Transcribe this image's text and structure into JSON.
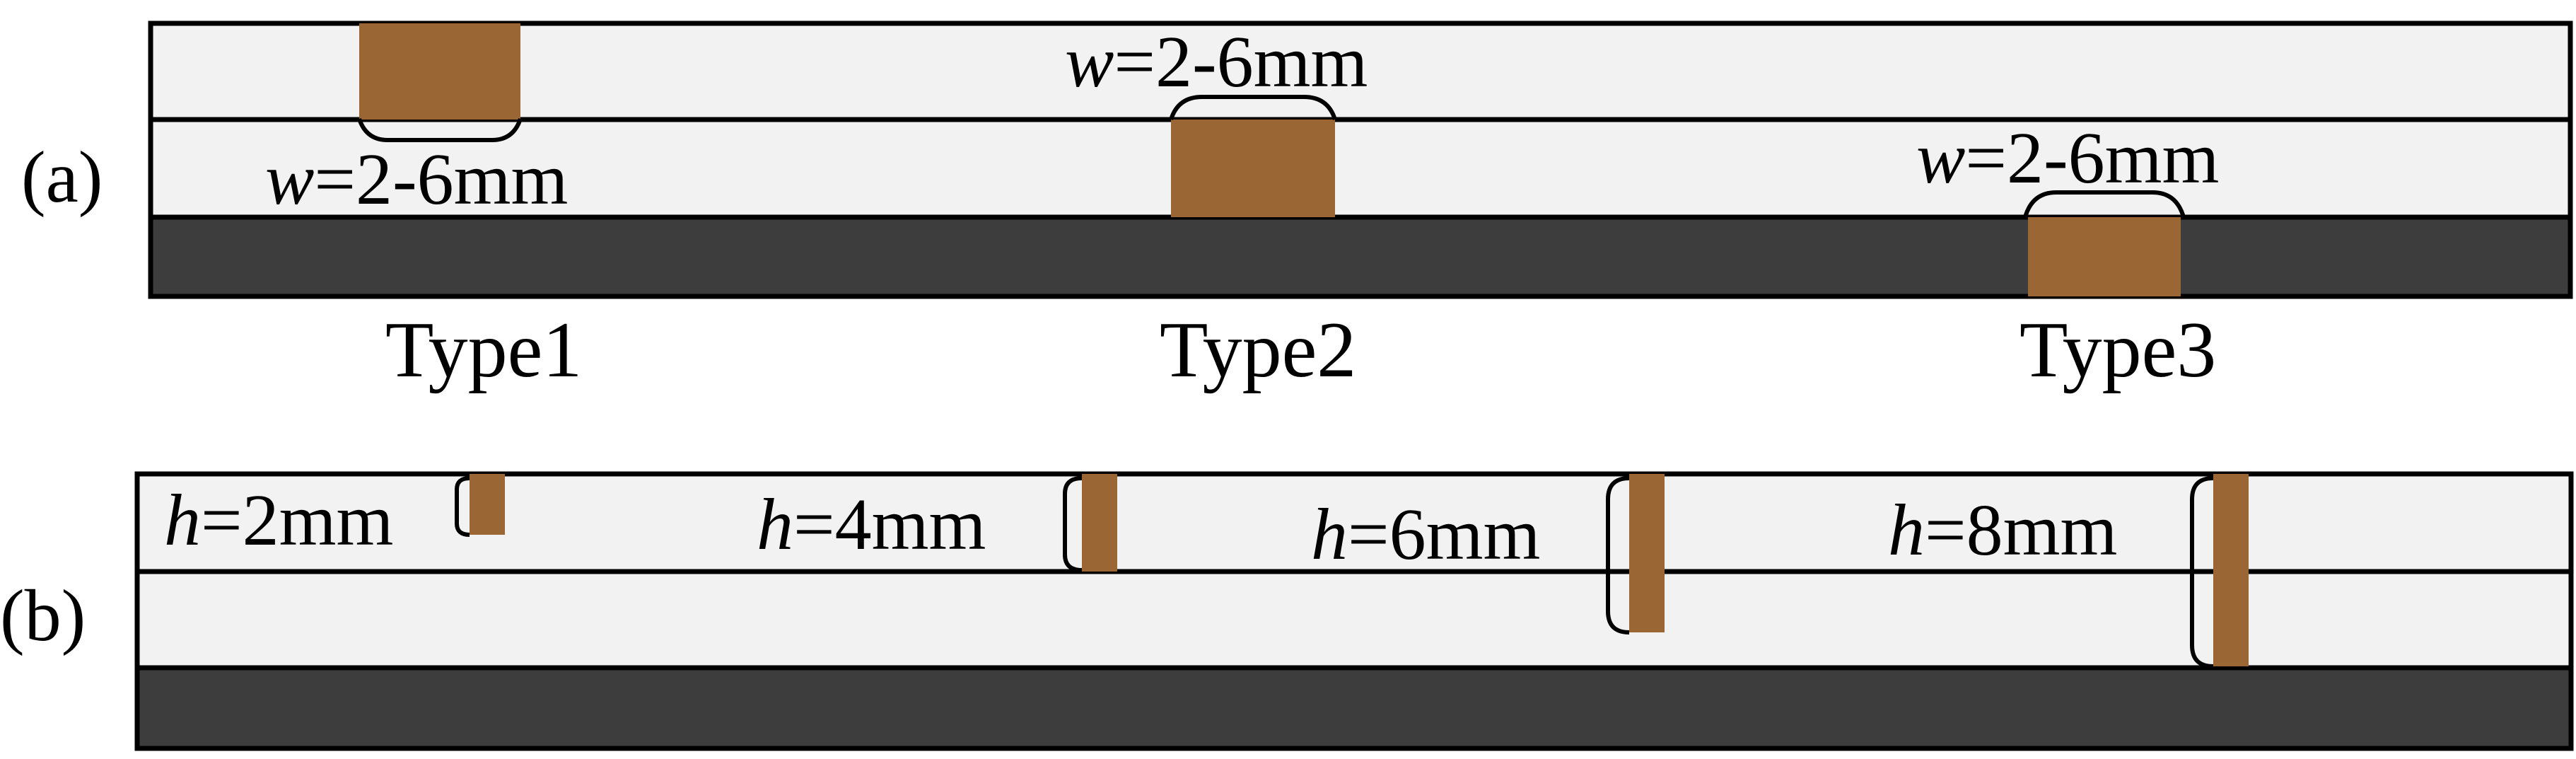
{
  "panel_a": {
    "label": "(a)",
    "types": [
      {
        "name": "Type1",
        "var": "w",
        "value": "=2-6mm"
      },
      {
        "name": "Type2",
        "var": "w",
        "value": "=2-6mm"
      },
      {
        "name": "Type3",
        "var": "w",
        "value": "=2-6mm"
      }
    ]
  },
  "panel_b": {
    "label": "(b)",
    "depths": [
      {
        "var": "h",
        "value": "=2mm"
      },
      {
        "var": "h",
        "value": "=4mm"
      },
      {
        "var": "h",
        "value": "=6mm"
      },
      {
        "var": "h",
        "value": "=8mm"
      }
    ]
  },
  "colors": {
    "layer_light": "#f2f2f2",
    "substrate": "#3d3d3d",
    "defect": "#9a6634",
    "outline": "#000000"
  }
}
